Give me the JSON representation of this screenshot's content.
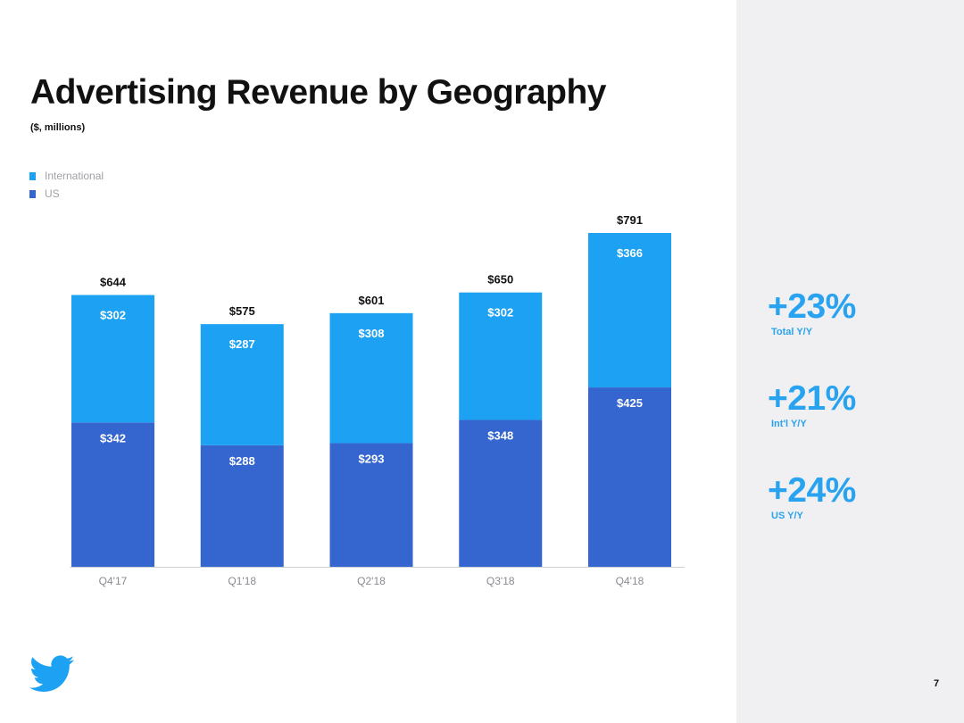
{
  "slide": {
    "title": "Advertising Revenue by Geography",
    "subtitle": "($, millions)",
    "page_number": "7",
    "logo": "twitter-bird-logo"
  },
  "legend": [
    {
      "label": "International",
      "color": "#1da1f2"
    },
    {
      "label": "US",
      "color": "#3566cf"
    }
  ],
  "stats": [
    {
      "value": "+23%",
      "label": "Total Y/Y"
    },
    {
      "value": "+21%",
      "label": "Int'l Y/Y"
    },
    {
      "value": "+24%",
      "label": "US Y/Y"
    }
  ],
  "colors": {
    "international": "#1da1f2",
    "us": "#3566cf",
    "accent": "#29a3ef",
    "side_panel": "#f0f0f2"
  },
  "chart_data": {
    "type": "bar",
    "stacked": true,
    "title": "Advertising Revenue by Geography",
    "ylabel": "($, millions)",
    "xlabel": "",
    "categories": [
      "Q4'17",
      "Q1'18",
      "Q2'18",
      "Q3'18",
      "Q4'18"
    ],
    "series": [
      {
        "name": "US",
        "values": [
          342,
          288,
          293,
          348,
          425
        ],
        "labels": [
          "$342",
          "$288",
          "$293",
          "$348",
          "$425"
        ]
      },
      {
        "name": "International",
        "values": [
          302,
          287,
          308,
          302,
          366
        ],
        "labels": [
          "$302",
          "$287",
          "$308",
          "$302",
          "$366"
        ]
      }
    ],
    "totals": [
      644,
      575,
      601,
      650,
      791
    ],
    "total_labels": [
      "$644",
      "$575",
      "$601",
      "$650",
      "$791"
    ],
    "ylim": [
      0,
      791
    ],
    "grid": false,
    "legend_position": "top-left"
  }
}
